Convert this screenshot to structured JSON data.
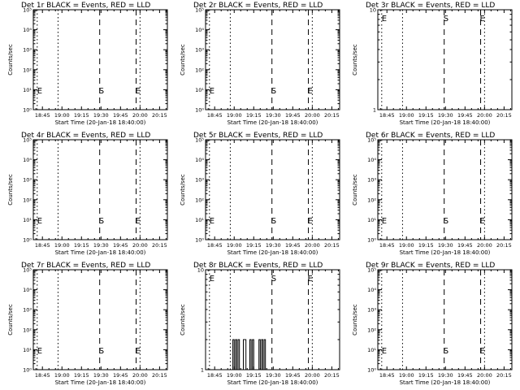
{
  "page": {
    "title_template": "Det {det} BLACK = Events, RED = LLD",
    "xlabel": "Start Time (20-Jan-18 18:40:00)",
    "ylabel": "Counts/sec"
  },
  "chart_data": [
    {
      "type": "line",
      "det": "1r",
      "title": "Det 1r BLACK = Events, RED = LLD",
      "xlabel": "Start Time (20-Jan-18 18:40:00)",
      "ylabel": "Counts/sec",
      "xlim": [
        "18:38",
        "20:21"
      ],
      "xticks": [
        "18:45",
        "19:00",
        "19:15",
        "19:30",
        "19:45",
        "20:00",
        "20:15"
      ],
      "y_scale": "log",
      "ylim": [
        1,
        100000
      ],
      "yticks": [
        {
          "value": 1,
          "label": "10⁰"
        },
        {
          "value": 10,
          "label": "10¹"
        },
        {
          "value": 100,
          "label": "10²"
        },
        {
          "value": 1000,
          "label": "10³"
        },
        {
          "value": 10000,
          "label": "10⁴"
        },
        {
          "value": 100000,
          "label": "10⁵"
        }
      ],
      "series": [
        {
          "color": "#000000",
          "points": []
        }
      ],
      "markers": [
        {
          "label": "E",
          "x": "18:41",
          "style": "dotted"
        },
        {
          "label": "",
          "x": "18:57",
          "style": "dotted"
        },
        {
          "label": "S",
          "x": "19:29",
          "style": "dashed"
        },
        {
          "label": "E",
          "x": "19:57",
          "style": "dashed"
        },
        {
          "label": "",
          "x": "20:00",
          "style": "dotted"
        }
      ]
    },
    {
      "type": "line",
      "det": "2r",
      "title": "Det 2r BLACK = Events, RED = LLD",
      "xlabel": "Start Time (20-Jan-18 18:40:00)",
      "ylabel": "Counts/sec",
      "xlim": [
        "18:38",
        "20:21"
      ],
      "xticks": [
        "18:45",
        "19:00",
        "19:15",
        "19:30",
        "19:45",
        "20:00",
        "20:15"
      ],
      "y_scale": "log",
      "ylim": [
        1,
        100000
      ],
      "yticks": [
        {
          "value": 1,
          "label": "10⁰"
        },
        {
          "value": 10,
          "label": "10¹"
        },
        {
          "value": 100,
          "label": "10²"
        },
        {
          "value": 1000,
          "label": "10³"
        },
        {
          "value": 10000,
          "label": "10⁴"
        },
        {
          "value": 100000,
          "label": "10⁵"
        }
      ],
      "series": [
        {
          "color": "#000000",
          "points": []
        }
      ],
      "markers": [
        {
          "label": "E",
          "x": "18:41",
          "style": "dotted"
        },
        {
          "label": "",
          "x": "18:57",
          "style": "dotted"
        },
        {
          "label": "S",
          "x": "19:29",
          "style": "dashed"
        },
        {
          "label": "E",
          "x": "19:57",
          "style": "dashed"
        },
        {
          "label": "",
          "x": "20:00",
          "style": "dotted"
        }
      ]
    },
    {
      "type": "line",
      "det": "3r",
      "title": "Det 3r BLACK = Events, RED = LLD",
      "xlabel": "Start Time (20-Jan-18 18:40:00)",
      "ylabel": "Counts/sec",
      "xlim": [
        "18:38",
        "20:21"
      ],
      "xticks": [
        "18:45",
        "19:00",
        "19:15",
        "19:30",
        "19:45",
        "20:00",
        "20:15"
      ],
      "y_scale": "log",
      "ylim": [
        1,
        10
      ],
      "yticks": [
        {
          "value": 1,
          "label": "1"
        },
        {
          "value": 10,
          "label": "10"
        }
      ],
      "series": [
        {
          "color": "#000000",
          "points": []
        }
      ],
      "markers": [
        {
          "label": "E",
          "x": "18:41",
          "style": "dotted"
        },
        {
          "label": "",
          "x": "18:57",
          "style": "dotted"
        },
        {
          "label": "S",
          "x": "19:29",
          "style": "dashed"
        },
        {
          "label": "E",
          "x": "19:57",
          "style": "dashed"
        },
        {
          "label": "",
          "x": "20:00",
          "style": "dotted"
        }
      ]
    },
    {
      "type": "line",
      "det": "4r",
      "title": "Det 4r BLACK = Events, RED = LLD",
      "xlabel": "Start Time (20-Jan-18 18:40:00)",
      "ylabel": "Counts/sec",
      "xlim": [
        "18:38",
        "20:21"
      ],
      "xticks": [
        "18:45",
        "19:00",
        "19:15",
        "19:30",
        "19:45",
        "20:00",
        "20:15"
      ],
      "y_scale": "log",
      "ylim": [
        1,
        100000
      ],
      "yticks": [
        {
          "value": 1,
          "label": "10⁰"
        },
        {
          "value": 10,
          "label": "10¹"
        },
        {
          "value": 100,
          "label": "10²"
        },
        {
          "value": 1000,
          "label": "10³"
        },
        {
          "value": 10000,
          "label": "10⁴"
        },
        {
          "value": 100000,
          "label": "10⁵"
        }
      ],
      "series": [
        {
          "color": "#000000",
          "points": []
        }
      ],
      "markers": [
        {
          "label": "E",
          "x": "18:41",
          "style": "dotted"
        },
        {
          "label": "",
          "x": "18:57",
          "style": "dotted"
        },
        {
          "label": "S",
          "x": "19:29",
          "style": "dashed"
        },
        {
          "label": "E",
          "x": "19:57",
          "style": "dashed"
        },
        {
          "label": "",
          "x": "20:00",
          "style": "dotted"
        }
      ]
    },
    {
      "type": "line",
      "det": "5r",
      "title": "Det 5r BLACK = Events, RED = LLD",
      "xlabel": "Start Time (20-Jan-18 18:40:00)",
      "ylabel": "Counts/sec",
      "xlim": [
        "18:38",
        "20:21"
      ],
      "xticks": [
        "18:45",
        "19:00",
        "19:15",
        "19:30",
        "19:45",
        "20:00",
        "20:15"
      ],
      "y_scale": "log",
      "ylim": [
        1,
        100000
      ],
      "yticks": [
        {
          "value": 1,
          "label": "10⁰"
        },
        {
          "value": 10,
          "label": "10¹"
        },
        {
          "value": 100,
          "label": "10²"
        },
        {
          "value": 1000,
          "label": "10³"
        },
        {
          "value": 10000,
          "label": "10⁴"
        },
        {
          "value": 100000,
          "label": "10⁵"
        }
      ],
      "series": [
        {
          "color": "#000000",
          "points": []
        }
      ],
      "markers": [
        {
          "label": "E",
          "x": "18:41",
          "style": "dotted"
        },
        {
          "label": "",
          "x": "18:57",
          "style": "dotted"
        },
        {
          "label": "S",
          "x": "19:29",
          "style": "dashed"
        },
        {
          "label": "E",
          "x": "19:57",
          "style": "dashed"
        },
        {
          "label": "",
          "x": "20:00",
          "style": "dotted"
        }
      ]
    },
    {
      "type": "line",
      "det": "6r",
      "title": "Det 6r BLACK = Events, RED = LLD",
      "xlabel": "Start Time (20-Jan-18 18:40:00)",
      "ylabel": "Counts/sec",
      "xlim": [
        "18:38",
        "20:21"
      ],
      "xticks": [
        "18:45",
        "19:00",
        "19:15",
        "19:30",
        "19:45",
        "20:00",
        "20:15"
      ],
      "y_scale": "log",
      "ylim": [
        1,
        100000
      ],
      "yticks": [
        {
          "value": 1,
          "label": "10⁰"
        },
        {
          "value": 10,
          "label": "10¹"
        },
        {
          "value": 100,
          "label": "10²"
        },
        {
          "value": 1000,
          "label": "10³"
        },
        {
          "value": 10000,
          "label": "10⁴"
        },
        {
          "value": 100000,
          "label": "10⁵"
        }
      ],
      "series": [
        {
          "color": "#000000",
          "points": []
        }
      ],
      "markers": [
        {
          "label": "E",
          "x": "18:41",
          "style": "dotted"
        },
        {
          "label": "",
          "x": "18:57",
          "style": "dotted"
        },
        {
          "label": "S",
          "x": "19:29",
          "style": "dashed"
        },
        {
          "label": "E",
          "x": "19:57",
          "style": "dashed"
        },
        {
          "label": "",
          "x": "20:00",
          "style": "dotted"
        }
      ]
    },
    {
      "type": "line",
      "det": "7r",
      "title": "Det 7r BLACK = Events, RED = LLD",
      "xlabel": "Start Time (20-Jan-18 18:40:00)",
      "ylabel": "Counts/sec",
      "xlim": [
        "18:38",
        "20:21"
      ],
      "xticks": [
        "18:45",
        "19:00",
        "19:15",
        "19:30",
        "19:45",
        "20:00",
        "20:15"
      ],
      "y_scale": "log",
      "ylim": [
        1,
        100000
      ],
      "yticks": [
        {
          "value": 1,
          "label": "10⁰"
        },
        {
          "value": 10,
          "label": "10¹"
        },
        {
          "value": 100,
          "label": "10²"
        },
        {
          "value": 1000,
          "label": "10³"
        },
        {
          "value": 10000,
          "label": "10⁴"
        },
        {
          "value": 100000,
          "label": "10⁵"
        }
      ],
      "series": [
        {
          "color": "#000000",
          "points": []
        }
      ],
      "markers": [
        {
          "label": "E",
          "x": "18:41",
          "style": "dotted"
        },
        {
          "label": "",
          "x": "18:57",
          "style": "dotted"
        },
        {
          "label": "S",
          "x": "19:29",
          "style": "dashed"
        },
        {
          "label": "E",
          "x": "19:57",
          "style": "dashed"
        },
        {
          "label": "",
          "x": "20:00",
          "style": "dotted"
        }
      ]
    },
    {
      "type": "line",
      "det": "8r",
      "title": "Det 8r BLACK = Events, RED = LLD",
      "xlabel": "Start Time (20-Jan-18 18:40:00)",
      "ylabel": "Counts/sec",
      "xlim": [
        "18:38",
        "20:21"
      ],
      "xticks": [
        "18:45",
        "19:00",
        "19:15",
        "19:30",
        "19:45",
        "20:00",
        "20:15"
      ],
      "y_scale": "log",
      "ylim": [
        1,
        10
      ],
      "yticks": [
        {
          "value": 1,
          "label": "1"
        },
        {
          "value": 10,
          "label": "10"
        }
      ],
      "series": [
        {
          "color": "#000000",
          "points": [
            [
              "18:59",
              1
            ],
            [
              "18:59",
              2
            ],
            [
              "19:00",
              2
            ],
            [
              "19:00",
              1
            ],
            [
              "19:01",
              1
            ],
            [
              "19:01",
              2
            ],
            [
              "19:02",
              2
            ],
            [
              "19:02",
              1
            ],
            [
              "19:03",
              1
            ],
            [
              "19:03",
              2
            ],
            [
              "19:04",
              2
            ],
            [
              "19:04",
              1
            ],
            [
              "19:07",
              1
            ],
            [
              "19:07",
              2
            ],
            [
              "19:09",
              2
            ],
            [
              "19:09",
              1
            ],
            [
              "19:12",
              1
            ],
            [
              "19:12",
              2
            ],
            [
              "19:13",
              2
            ],
            [
              "19:13",
              1
            ],
            [
              "19:14",
              1
            ],
            [
              "19:14",
              2
            ],
            [
              "19:15",
              2
            ],
            [
              "19:15",
              1
            ],
            [
              "19:19",
              1
            ],
            [
              "19:19",
              2
            ],
            [
              "19:20",
              2
            ],
            [
              "19:20",
              1
            ],
            [
              "19:21",
              1
            ],
            [
              "19:21",
              2
            ],
            [
              "19:22",
              2
            ],
            [
              "19:22",
              1
            ],
            [
              "19:23",
              1
            ],
            [
              "19:23",
              2
            ],
            [
              "19:24",
              2
            ],
            [
              "19:24",
              1
            ]
          ]
        }
      ],
      "markers": [
        {
          "label": "E",
          "x": "18:41",
          "style": "dotted"
        },
        {
          "label": "",
          "x": "18:57",
          "style": "dotted"
        },
        {
          "label": "S",
          "x": "19:29",
          "style": "dashed"
        },
        {
          "label": "E",
          "x": "19:57",
          "style": "dashed"
        },
        {
          "label": "",
          "x": "20:00",
          "style": "dotted"
        }
      ]
    },
    {
      "type": "line",
      "det": "9r",
      "title": "Det 9r BLACK = Events, RED = LLD",
      "xlabel": "Start Time (20-Jan-18 18:40:00)",
      "ylabel": "Counts/sec",
      "xlim": [
        "18:38",
        "20:21"
      ],
      "xticks": [
        "18:45",
        "19:00",
        "19:15",
        "19:30",
        "19:45",
        "20:00",
        "20:15"
      ],
      "y_scale": "log",
      "ylim": [
        1,
        100000
      ],
      "yticks": [
        {
          "value": 1,
          "label": "10⁰"
        },
        {
          "value": 10,
          "label": "10¹"
        },
        {
          "value": 100,
          "label": "10²"
        },
        {
          "value": 1000,
          "label": "10³"
        },
        {
          "value": 10000,
          "label": "10⁴"
        },
        {
          "value": 100000,
          "label": "10⁵"
        }
      ],
      "series": [
        {
          "color": "#000000",
          "points": []
        }
      ],
      "markers": [
        {
          "label": "E",
          "x": "18:41",
          "style": "dotted"
        },
        {
          "label": "",
          "x": "18:57",
          "style": "dotted"
        },
        {
          "label": "S",
          "x": "19:29",
          "style": "dashed"
        },
        {
          "label": "E",
          "x": "19:57",
          "style": "dashed"
        },
        {
          "label": "",
          "x": "20:00",
          "style": "dotted"
        }
      ]
    }
  ]
}
